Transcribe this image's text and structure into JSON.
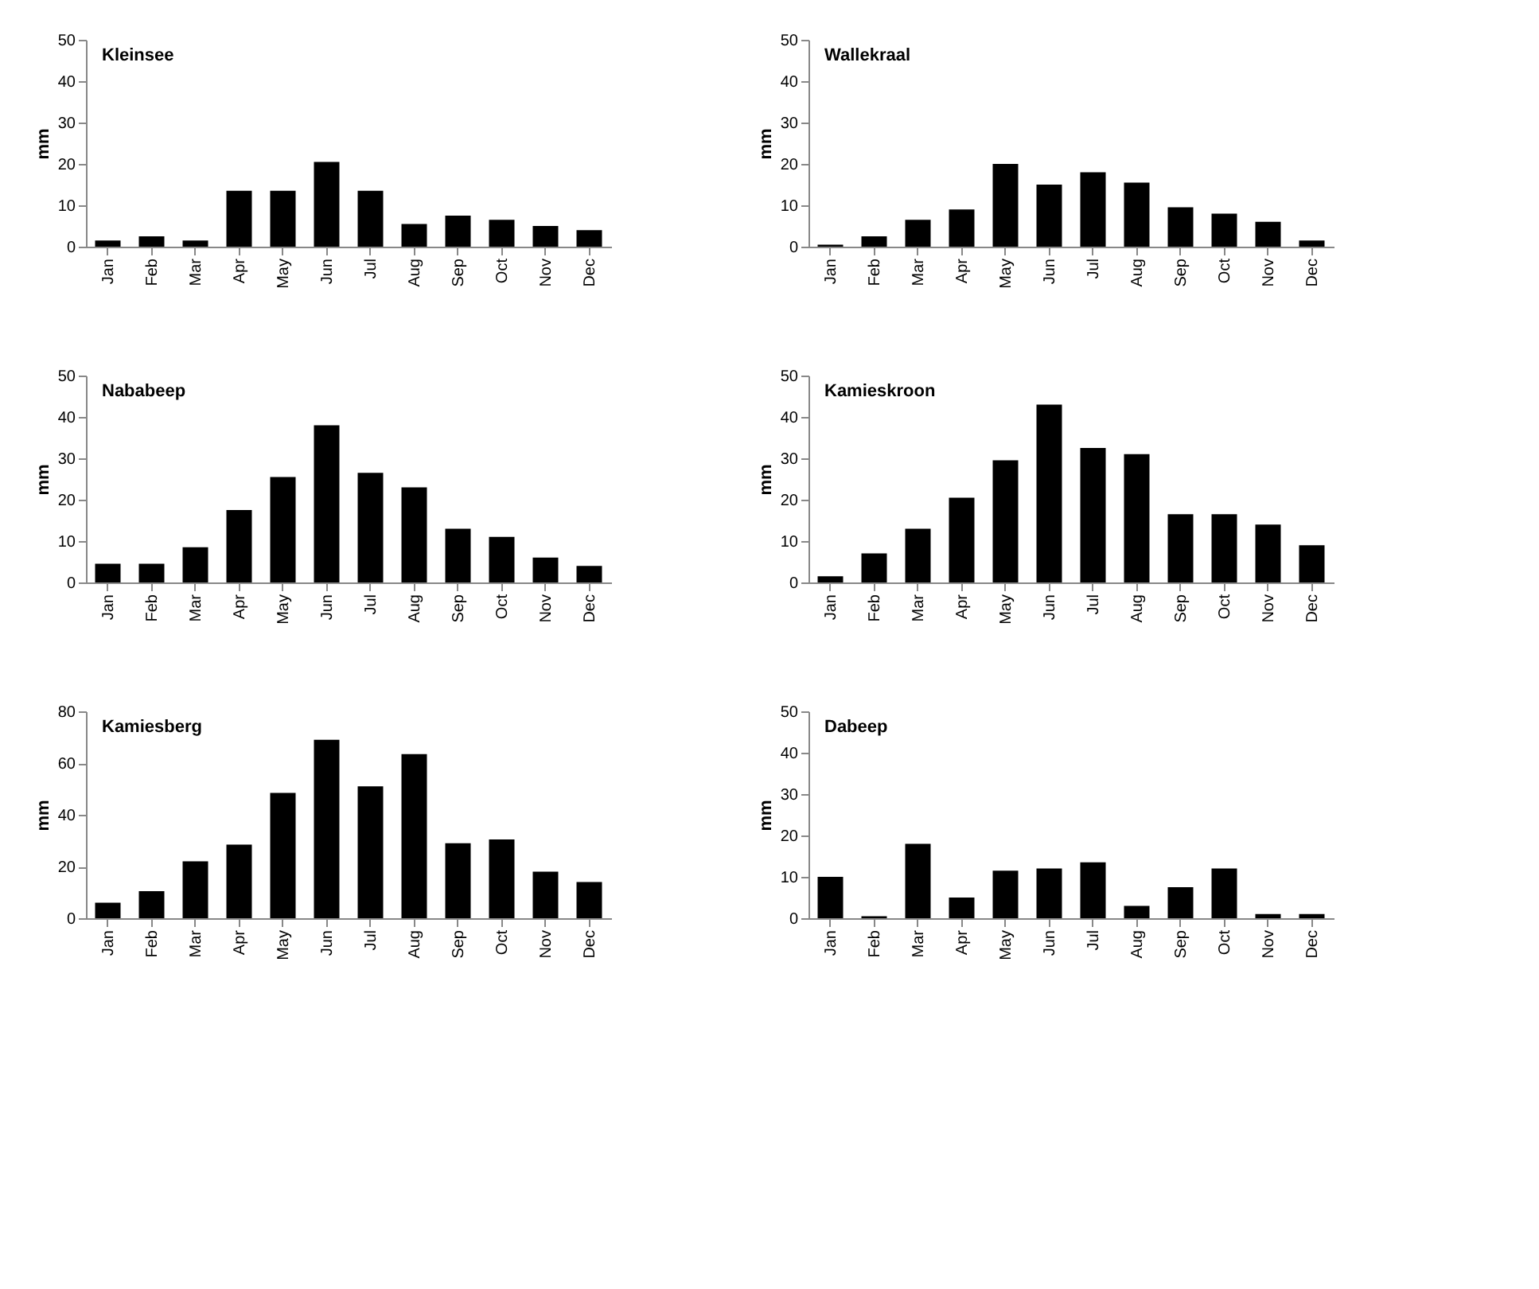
{
  "chart_data": [
    {
      "type": "bar",
      "title": "Kleinsee",
      "ylabel": "mm",
      "categories": [
        "Jan",
        "Feb",
        "Mar",
        "Apr",
        "May",
        "Jun",
        "Jul",
        "Aug",
        "Sep",
        "Oct",
        "Nov",
        "Dec"
      ],
      "values": [
        1.5,
        2.5,
        1.5,
        13.5,
        13.5,
        20.5,
        13.5,
        5.5,
        7.5,
        6.5,
        5,
        4
      ],
      "color": "#000000",
      "ylim": [
        0,
        50
      ],
      "yticks": [
        0,
        10,
        20,
        30,
        40,
        50
      ],
      "grid": false
    },
    {
      "type": "bar",
      "title": "Wallekraal",
      "ylabel": "mm",
      "categories": [
        "Jan",
        "Feb",
        "Mar",
        "Apr",
        "May",
        "Jun",
        "Jul",
        "Aug",
        "Sep",
        "Oct",
        "Nov",
        "Dec"
      ],
      "values": [
        0.5,
        2.5,
        6.5,
        9,
        20,
        15,
        18,
        15.5,
        9.5,
        8,
        6,
        1.5
      ],
      "color": "#000000",
      "ylim": [
        0,
        50
      ],
      "yticks": [
        0,
        10,
        20,
        30,
        40,
        50
      ],
      "grid": false
    },
    {
      "type": "bar",
      "title": "Nababeep",
      "ylabel": "mm",
      "categories": [
        "Jan",
        "Feb",
        "Mar",
        "Apr",
        "May",
        "Jun",
        "Jul",
        "Aug",
        "Sep",
        "Oct",
        "Nov",
        "Dec"
      ],
      "values": [
        4.5,
        4.5,
        8.5,
        17.5,
        25.5,
        38,
        26.5,
        23,
        13,
        11,
        6,
        4
      ],
      "color": "#000000",
      "ylim": [
        0,
        50
      ],
      "yticks": [
        0,
        10,
        20,
        30,
        40,
        50
      ],
      "grid": false
    },
    {
      "type": "bar",
      "title": "Kamieskroon",
      "ylabel": "mm",
      "categories": [
        "Jan",
        "Feb",
        "Mar",
        "Apr",
        "May",
        "Jun",
        "Jul",
        "Aug",
        "Sep",
        "Oct",
        "Nov",
        "Dec"
      ],
      "values": [
        1.5,
        7,
        13,
        20.5,
        29.5,
        43,
        32.5,
        31,
        16.5,
        16.5,
        14,
        9
      ],
      "color": "#000000",
      "ylim": [
        0,
        50
      ],
      "yticks": [
        0,
        10,
        20,
        30,
        40,
        50
      ],
      "grid": false
    },
    {
      "type": "bar",
      "title": "Kamiesberg",
      "ylabel": "mm",
      "categories": [
        "Jan",
        "Feb",
        "Mar",
        "Apr",
        "May",
        "Jun",
        "Jul",
        "Aug",
        "Sep",
        "Oct",
        "Nov",
        "Dec"
      ],
      "values": [
        6,
        10.5,
        22,
        28.5,
        48.5,
        69,
        51,
        63.5,
        29,
        30.5,
        18,
        14
      ],
      "color": "#000000",
      "ylim": [
        0,
        80
      ],
      "yticks": [
        0,
        20,
        40,
        60,
        80
      ],
      "grid": false
    },
    {
      "type": "bar",
      "title": "Dabeep",
      "ylabel": "mm",
      "categories": [
        "Jan",
        "Feb",
        "Mar",
        "Apr",
        "May",
        "Jun",
        "Jul",
        "Aug",
        "Sep",
        "Oct",
        "Nov",
        "Dec"
      ],
      "values": [
        10,
        0.5,
        18,
        5,
        11.5,
        12,
        13.5,
        3,
        7.5,
        12,
        1,
        1
      ],
      "color": "#000000",
      "ylim": [
        0,
        50
      ],
      "yticks": [
        0,
        10,
        20,
        30,
        40,
        50
      ],
      "grid": false
    }
  ]
}
